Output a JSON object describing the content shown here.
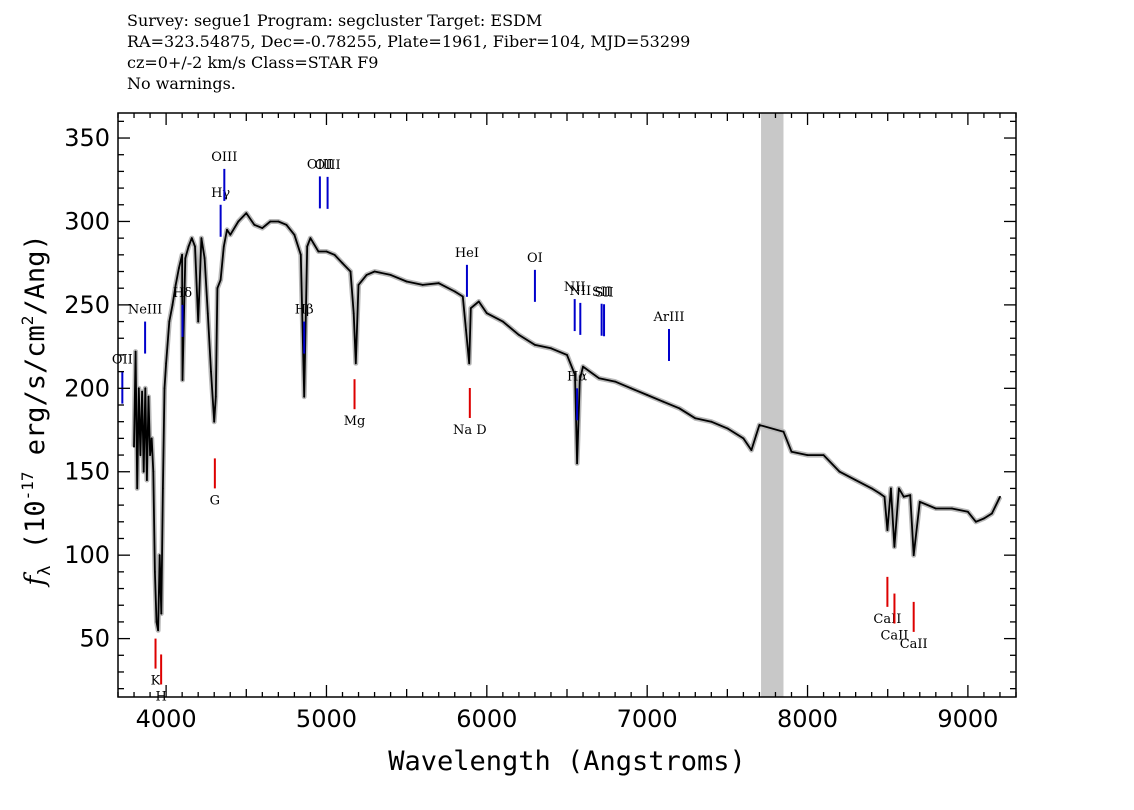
{
  "header": {
    "line1": "Survey: segue1 Program: segcluster Target: ESDM",
    "line2": "RA=323.54875, Dec=-0.78255, Plate=1961, Fiber=104, MJD=53299",
    "line3": "cz=0+/-2 km/s Class=STAR F9",
    "line4": "No warnings."
  },
  "colors": {
    "spectrum": "#000000",
    "error_band": "#b8b8b8",
    "emission_lines": "#0000cc",
    "absorption_lines": "#dd0000",
    "masked_region": "#c8c8c8"
  },
  "chart_data": {
    "type": "line",
    "xlabel": "Wavelength (Angstroms)",
    "ylabel": "f_λ (10^-17 erg/s/cm^2/Ang)",
    "xlim": [
      3700,
      9300
    ],
    "ylim": [
      15,
      365
    ],
    "x_ticks": [
      4000,
      5000,
      6000,
      7000,
      8000,
      9000
    ],
    "y_ticks": [
      50,
      100,
      150,
      200,
      250,
      300,
      350
    ],
    "masked_region": [
      7710,
      7850
    ],
    "series": [
      {
        "x": [
          3800,
          3810,
          3820,
          3830,
          3840,
          3850,
          3860,
          3870,
          3880,
          3890,
          3900,
          3910,
          3920,
          3930,
          3940,
          3950,
          3960,
          3970,
          3980,
          3990,
          4000,
          4020,
          4040,
          4060,
          4080,
          4100,
          4102,
          4120,
          4140,
          4160,
          4180,
          4200,
          4220,
          4240,
          4260,
          4280,
          4300,
          4310,
          4320,
          4340,
          4360,
          4380,
          4400,
          4450,
          4500,
          4550,
          4600,
          4650,
          4700,
          4750,
          4800,
          4840,
          4861,
          4880,
          4900,
          4950,
          5000,
          5050,
          5100,
          5150,
          5170,
          5183,
          5200,
          5250,
          5300,
          5400,
          5500,
          5600,
          5700,
          5800,
          5850,
          5870,
          5890,
          5900,
          5950,
          6000,
          6100,
          6200,
          6300,
          6400,
          6500,
          6550,
          6563,
          6580,
          6600,
          6700,
          6800,
          6900,
          7000,
          7100,
          7200,
          7300,
          7400,
          7500,
          7600,
          7650,
          7680,
          7700,
          7850,
          7900,
          8000,
          8100,
          8200,
          8300,
          8400,
          8450,
          8480,
          8498,
          8520,
          8542,
          8570,
          8600,
          8640,
          8662,
          8700,
          8800,
          8900,
          9000,
          9050,
          9100,
          9150,
          9200
        ],
        "y": [
          165,
          222,
          140,
          200,
          160,
          198,
          150,
          200,
          145,
          195,
          160,
          170,
          150,
          90,
          60,
          55,
          100,
          65,
          140,
          200,
          215,
          240,
          250,
          262,
          272,
          280,
          205,
          278,
          285,
          290,
          285,
          240,
          290,
          278,
          245,
          210,
          180,
          195,
          260,
          265,
          285,
          295,
          292,
          300,
          305,
          298,
          296,
          300,
          300,
          298,
          292,
          280,
          195,
          285,
          290,
          282,
          282,
          280,
          275,
          270,
          245,
          215,
          262,
          268,
          270,
          268,
          264,
          262,
          263,
          258,
          255,
          235,
          215,
          248,
          252,
          245,
          240,
          232,
          226,
          224,
          220,
          208,
          155,
          205,
          213,
          206,
          204,
          200,
          196,
          192,
          188,
          182,
          180,
          176,
          170,
          163,
          172,
          178,
          174,
          162,
          160,
          160,
          150,
          145,
          140,
          137,
          135,
          115,
          140,
          105,
          140,
          135,
          136,
          100,
          132,
          128,
          128,
          126,
          120,
          122,
          125,
          135
        ]
      }
    ],
    "emission_lines": [
      {
        "label": "OII",
        "wavelength": 3727
      },
      {
        "label": "NeIII",
        "wavelength": 3869
      },
      {
        "label": "Hδ",
        "wavelength": 4102
      },
      {
        "label": "Hγ",
        "wavelength": 4340
      },
      {
        "label": "OIII",
        "wavelength": 4363
      },
      {
        "label": "Hβ",
        "wavelength": 4861
      },
      {
        "label": "OIII",
        "wavelength": 4959
      },
      {
        "label": "OIII",
        "wavelength": 5007
      },
      {
        "label": "HeI",
        "wavelength": 5876
      },
      {
        "label": "OI",
        "wavelength": 6300
      },
      {
        "label": "NII",
        "wavelength": 6548
      },
      {
        "label": "Hα",
        "wavelength": 6563
      },
      {
        "label": "NII",
        "wavelength": 6583
      },
      {
        "label": "SII",
        "wavelength": 6716
      },
      {
        "label": "SII",
        "wavelength": 6731
      },
      {
        "label": "ArIII",
        "wavelength": 7136
      }
    ],
    "absorption_lines": [
      {
        "label": "K",
        "wavelength": 3934
      },
      {
        "label": "H",
        "wavelength": 3969
      },
      {
        "label": "G",
        "wavelength": 4304
      },
      {
        "label": "Mg",
        "wavelength": 5175
      },
      {
        "label": "Na D",
        "wavelength": 5894
      },
      {
        "label": "CaII",
        "wavelength": 8498
      },
      {
        "label": "CaII",
        "wavelength": 8542
      },
      {
        "label": "CaII",
        "wavelength": 8662
      }
    ]
  }
}
